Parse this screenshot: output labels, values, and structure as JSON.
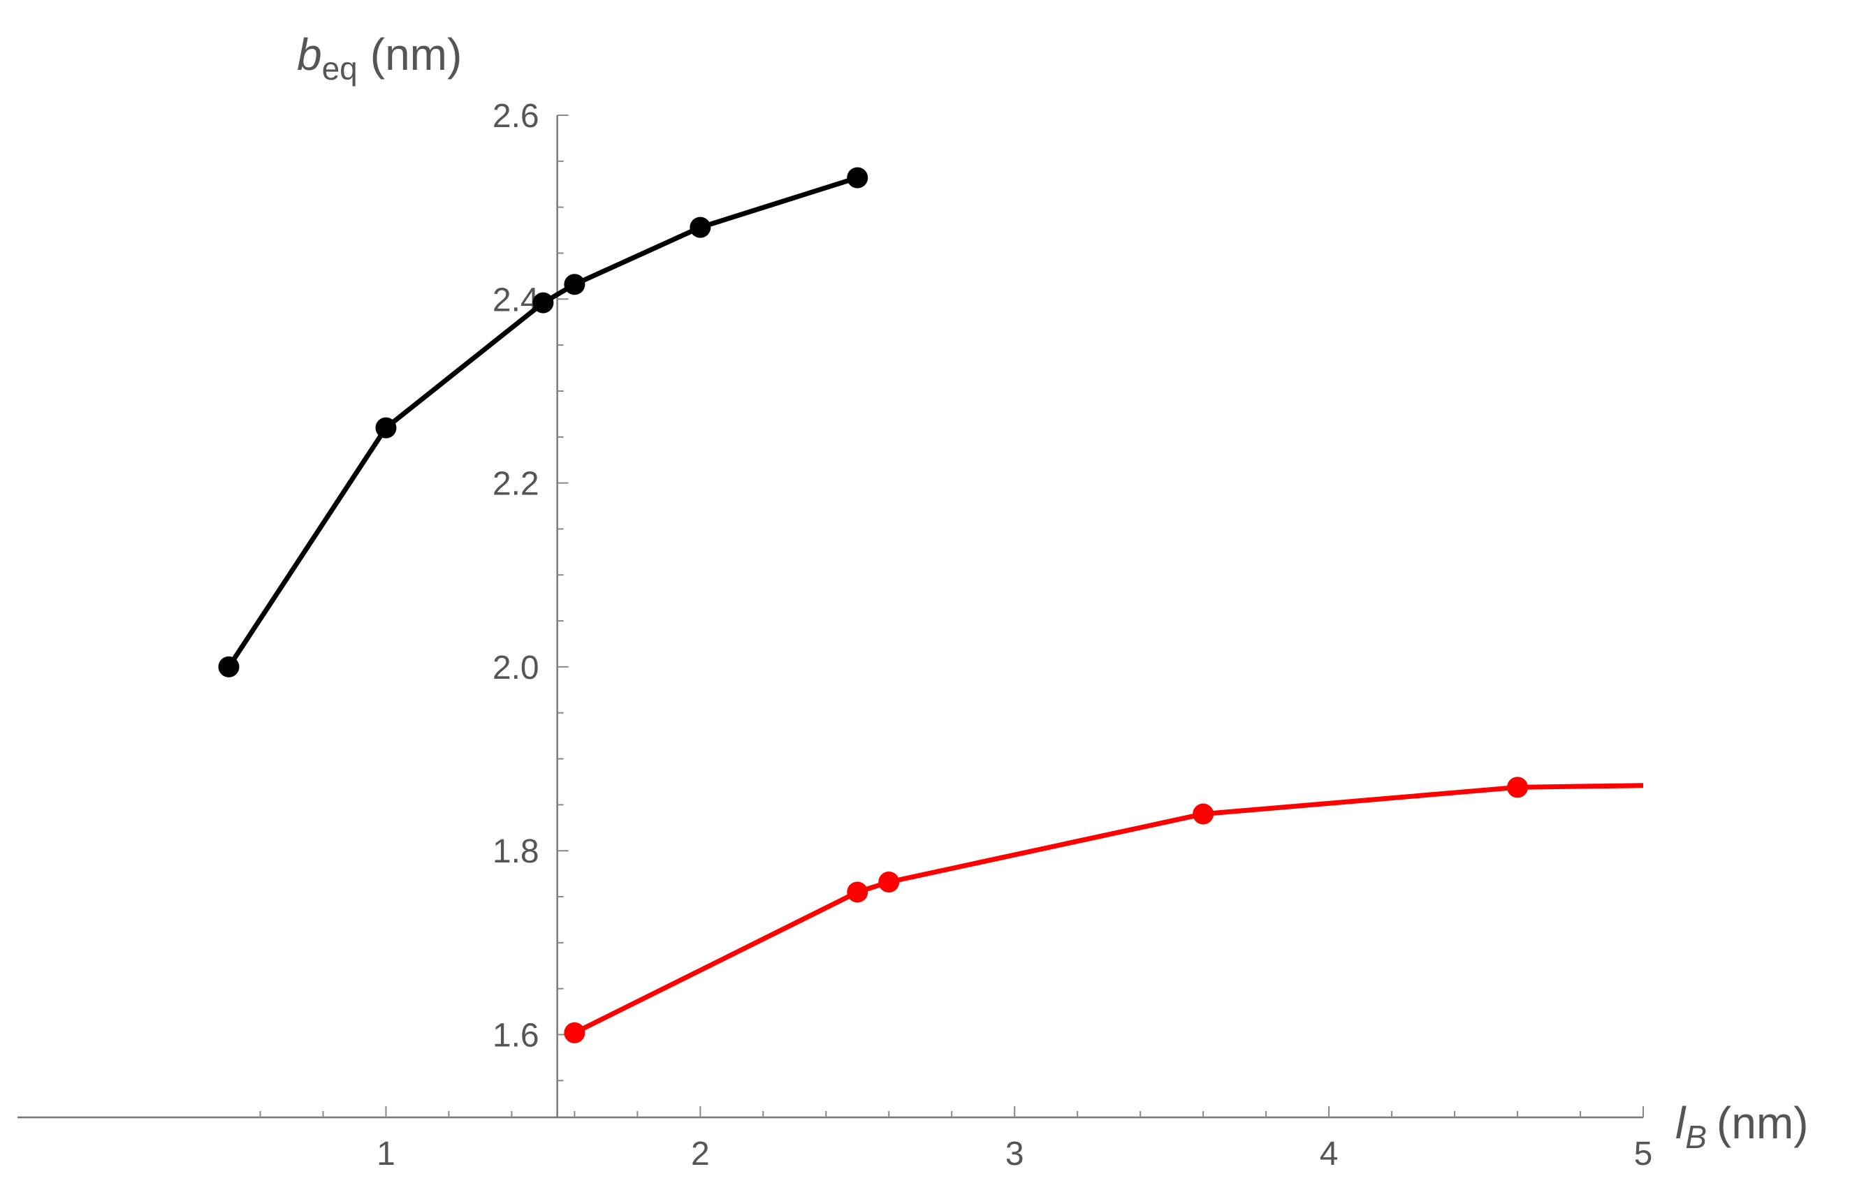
{
  "chart_data": {
    "type": "line",
    "xlabel": {
      "main": "l",
      "sub": "B",
      "unit": "(nm)"
    },
    "ylabel": {
      "main": "b",
      "sub": "eq",
      "unit": "(nm)"
    },
    "xlim": [
      0.45,
      5.0
    ],
    "ylim": [
      1.51,
      2.6
    ],
    "x_axis_crosses_y_at": 1.51,
    "y_axis_crosses_x_at": 1.545,
    "x_major_ticks": [
      1,
      2,
      3,
      4,
      5
    ],
    "x_tick_labels": [
      "1",
      "2",
      "3",
      "4",
      "5"
    ],
    "x_minor_step": 0.2,
    "y_major_ticks": [
      1.6,
      1.8,
      2.0,
      2.2,
      2.4,
      2.6
    ],
    "y_tick_labels": [
      "1.6",
      "1.8",
      "2.0",
      "2.2",
      "2.4",
      "2.6"
    ],
    "y_minor_step": 0.05,
    "grid": false,
    "series": [
      {
        "color": "#000000",
        "points": [
          [
            0.5,
            2.0
          ],
          [
            1.0,
            2.26
          ],
          [
            1.5,
            2.396
          ],
          [
            1.6,
            2.416
          ],
          [
            2.0,
            2.478
          ],
          [
            2.5,
            2.532
          ]
        ]
      },
      {
        "color": "#ff0000",
        "points": [
          [
            1.6,
            1.602
          ],
          [
            2.5,
            1.755
          ],
          [
            2.6,
            1.766
          ],
          [
            3.6,
            1.84
          ],
          [
            4.6,
            1.869
          ]
        ],
        "line_extends_to": [
          5.0,
          1.871
        ]
      }
    ]
  }
}
